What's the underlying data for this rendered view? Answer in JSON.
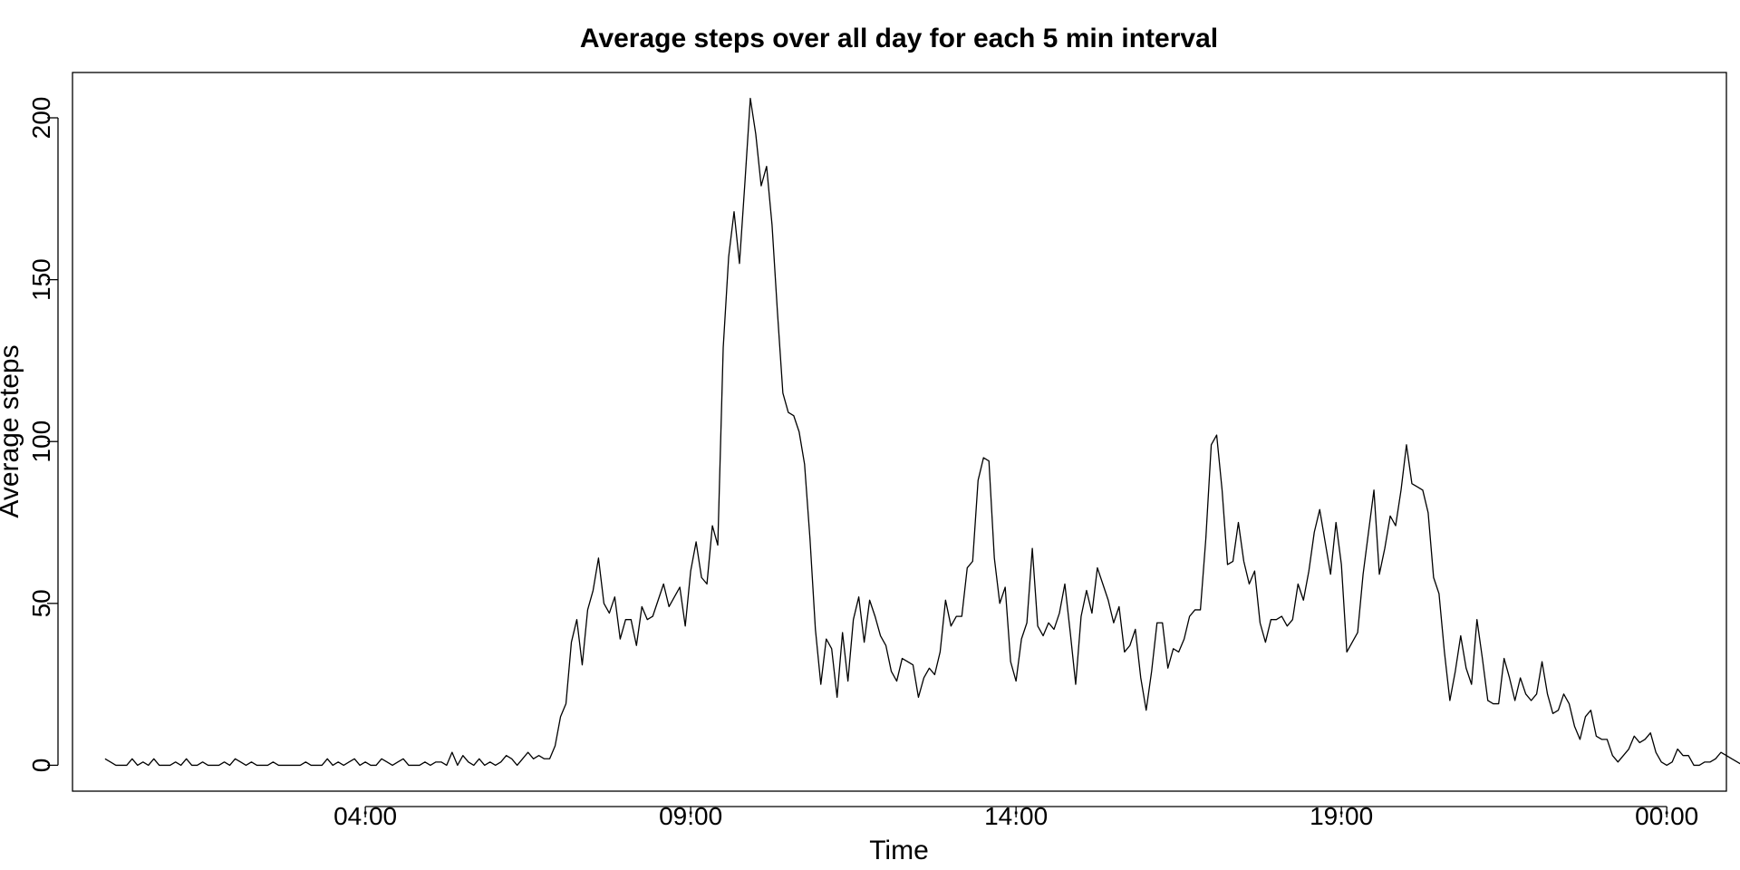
{
  "chart_data": {
    "type": "line",
    "title": "Average steps over all day for each 5 min interval",
    "xlabel": "Time",
    "ylabel": "Average steps",
    "x_start": "00:00",
    "x_interval_minutes": 5,
    "x_ticks": [
      {
        "label": "04:00",
        "minutes": 240
      },
      {
        "label": "09:00",
        "minutes": 540
      },
      {
        "label": "14:00",
        "minutes": 840
      },
      {
        "label": "19:00",
        "minutes": 1140
      },
      {
        "label": "00:00",
        "minutes": 1440
      }
    ],
    "y_ticks": [
      0,
      50,
      100,
      150,
      200
    ],
    "xlim": [
      "23:30",
      "00:55"
    ],
    "ylim": [
      -8,
      214
    ],
    "grid": false,
    "line_color": "#000000",
    "series": [
      {
        "values": [
          2,
          1,
          0,
          0,
          0,
          2,
          0,
          1,
          0,
          2,
          0,
          0,
          0,
          1,
          0,
          2,
          0,
          0,
          1,
          0,
          0,
          0,
          1,
          0,
          2,
          1,
          0,
          1,
          0,
          0,
          0,
          1,
          0,
          0,
          0,
          0,
          0,
          1,
          0,
          0,
          0,
          2,
          0,
          1,
          0,
          1,
          2,
          0,
          1,
          0,
          0,
          2,
          1,
          0,
          1,
          2,
          0,
          0,
          0,
          1,
          0,
          1,
          1,
          0,
          4,
          0,
          3,
          1,
          0,
          2,
          0,
          1,
          0,
          1,
          3,
          2,
          0,
          2,
          4,
          2,
          3,
          2,
          2,
          6,
          15,
          19,
          38,
          45,
          31,
          48,
          54,
          64,
          50,
          47,
          52,
          39,
          45,
          45,
          37,
          49,
          45,
          46,
          51,
          56,
          49,
          52,
          55,
          43,
          60,
          69,
          58,
          56,
          74,
          68,
          129,
          157,
          171,
          155,
          180,
          206,
          195,
          179,
          185,
          167,
          140,
          115,
          109,
          108,
          103,
          93,
          70,
          42,
          25,
          39,
          36,
          21,
          41,
          26,
          45,
          52,
          38,
          51,
          46,
          40,
          37,
          29,
          26,
          33,
          32,
          31,
          21,
          27,
          30,
          28,
          35,
          51,
          43,
          46,
          46,
          61,
          63,
          88,
          95,
          94,
          64,
          50,
          55,
          32,
          26,
          39,
          44,
          67,
          43,
          40,
          44,
          42,
          47,
          56,
          41,
          25,
          46,
          54,
          47,
          61,
          56,
          51,
          44,
          49,
          35,
          37,
          42,
          27,
          17,
          29,
          44,
          44,
          30,
          36,
          35,
          39,
          46,
          48,
          48,
          70,
          99,
          102,
          85,
          62,
          63,
          75,
          63,
          56,
          60,
          44,
          38,
          45,
          45,
          46,
          43,
          45,
          56,
          51,
          60,
          72,
          79,
          69,
          59,
          75,
          62,
          35,
          38,
          41,
          59,
          72,
          85,
          59,
          67,
          77,
          74,
          85,
          99,
          87,
          86,
          85,
          78,
          58,
          53,
          35,
          20,
          29,
          40,
          30,
          25,
          45,
          33,
          20,
          19,
          19,
          33,
          27,
          20,
          27,
          22,
          20,
          22,
          32,
          22,
          16,
          17,
          22,
          19,
          12,
          8,
          15,
          17,
          9,
          8,
          8,
          3,
          1,
          3,
          5,
          9,
          7,
          8,
          10,
          4,
          1,
          0,
          1,
          5,
          3,
          3,
          0,
          0,
          1,
          1,
          2,
          4,
          3,
          2,
          1,
          0,
          1
        ]
      }
    ]
  }
}
